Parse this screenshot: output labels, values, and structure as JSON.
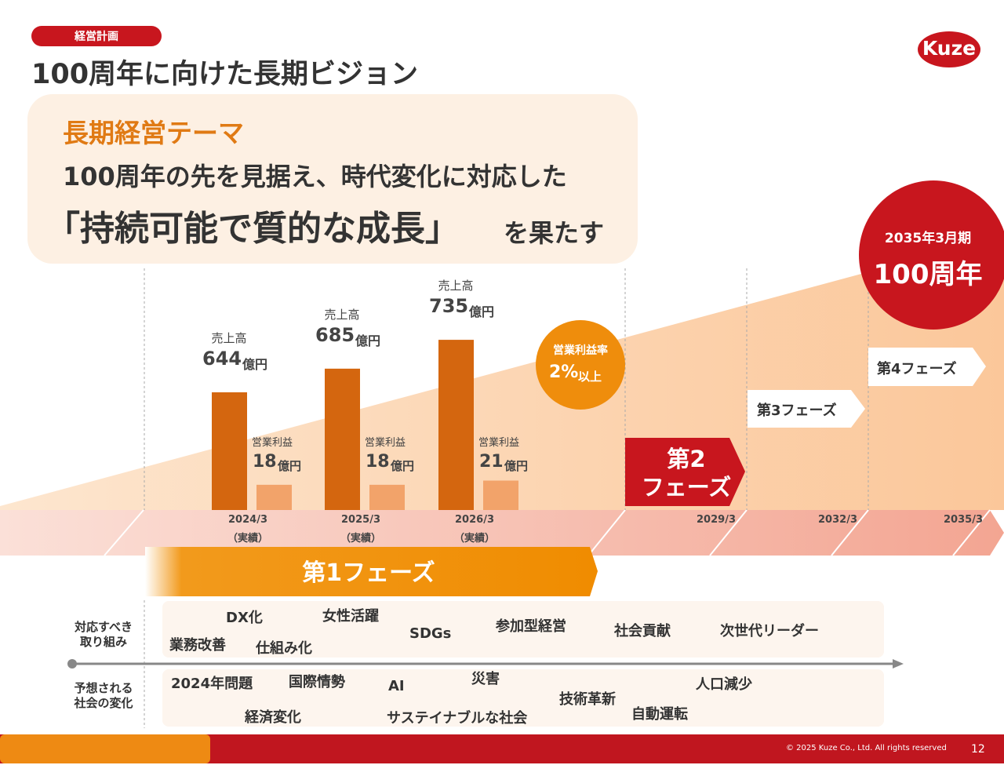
{
  "header": {
    "tag": "経営計画",
    "title": "100周年に向けた長期ビジョン",
    "logo": "Kuze"
  },
  "theme": {
    "label": "長期経営テーマ",
    "line1": "100周年の先を見据え、時代変化に対応した",
    "line2_main": "「持続可能で質的な成長」",
    "line2_tail": "を果たす"
  },
  "chart_data": {
    "type": "bar",
    "categories": [
      "2024/3",
      "2025/3",
      "2026/3"
    ],
    "category_note": "（実績）",
    "series": [
      {
        "name": "売上高",
        "unit": "億円",
        "color": "#d4660f",
        "values": [
          644,
          685,
          735
        ]
      },
      {
        "name": "営業利益",
        "unit": "億円",
        "color": "#f2a36a",
        "axis": "y2",
        "values": [
          18,
          18,
          21
        ]
      }
    ],
    "ylim": [
      440,
      780
    ],
    "y2lim": [
      0,
      140
    ]
  },
  "target": {
    "label": "営業利益率",
    "value": "2%",
    "suffix": "以上"
  },
  "milestone": {
    "date": "2035年3月期",
    "label": "100周年"
  },
  "timeline": {
    "dates": [
      "2029/3",
      "2032/3",
      "2035/3"
    ],
    "phase1": "第1フェーズ",
    "phase2": [
      "第2",
      "フェーズ"
    ],
    "phase3": "第3フェーズ",
    "phase4": "第4フェーズ"
  },
  "initiatives": {
    "label": [
      "対応すべき",
      "取り組み"
    ],
    "items": [
      "DX化",
      "女性活躍",
      "業務改善",
      "仕組み化",
      "SDGs",
      "参加型経営",
      "社会貢献",
      "次世代リーダー"
    ]
  },
  "changes": {
    "label": [
      "予想される",
      "社会の変化"
    ],
    "items": [
      "2024年問題",
      "国際情勢",
      "AI",
      "災害",
      "経済変化",
      "サステイナブルな社会",
      "技術革新",
      "自動運転",
      "人口減少"
    ]
  },
  "footer": {
    "copyright": "© 2025 Kuze Co., Ltd. All rights reserved",
    "page": "12"
  }
}
